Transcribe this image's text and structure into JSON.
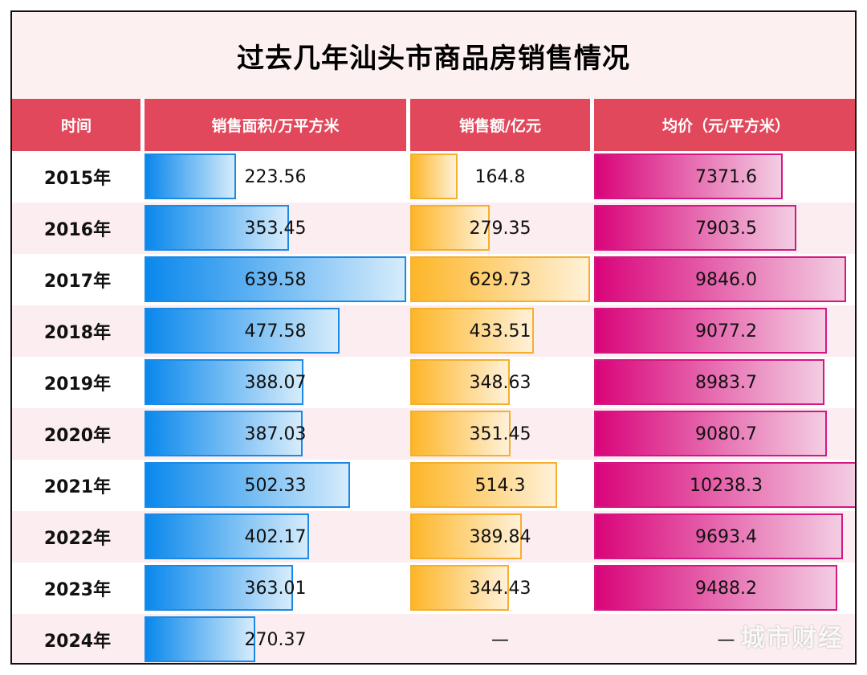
{
  "chart_data": {
    "type": "table",
    "title": "过去几年汕头市商品房销售情况",
    "headers": [
      "时间",
      "销售面积/万平方米",
      "销售额/亿元",
      "均价（元/平方米）"
    ],
    "rows": [
      {
        "year": "2015年",
        "area": 223.56,
        "area_label": "223.56",
        "sales": 164.8,
        "sales_label": "164.8",
        "price": 7371.6,
        "price_label": "7371.6"
      },
      {
        "year": "2016年",
        "area": 353.45,
        "area_label": "353.45",
        "sales": 279.35,
        "sales_label": "279.35",
        "price": 7903.5,
        "price_label": "7903.5"
      },
      {
        "year": "2017年",
        "area": 639.58,
        "area_label": "639.58",
        "sales": 629.73,
        "sales_label": "629.73",
        "price": 9846.0,
        "price_label": "9846.0"
      },
      {
        "year": "2018年",
        "area": 477.58,
        "area_label": "477.58",
        "sales": 433.51,
        "sales_label": "433.51",
        "price": 9077.2,
        "price_label": "9077.2"
      },
      {
        "year": "2019年",
        "area": 388.07,
        "area_label": "388.07",
        "sales": 348.63,
        "sales_label": "348.63",
        "price": 8983.7,
        "price_label": "8983.7"
      },
      {
        "year": "2020年",
        "area": 387.03,
        "area_label": "387.03",
        "sales": 351.45,
        "sales_label": "351.45",
        "price": 9080.7,
        "price_label": "9080.7"
      },
      {
        "year": "2021年",
        "area": 502.33,
        "area_label": "502.33",
        "sales": 514.3,
        "sales_label": "514.3",
        "price": 10238.3,
        "price_label": "10238.3"
      },
      {
        "year": "2022年",
        "area": 402.17,
        "area_label": "402.17",
        "sales": 389.84,
        "sales_label": "389.84",
        "price": 9693.4,
        "price_label": "9693.4"
      },
      {
        "year": "2023年",
        "area": 363.01,
        "area_label": "363.01",
        "sales": 344.43,
        "sales_label": "344.43",
        "price": 9488.2,
        "price_label": "9488.2"
      },
      {
        "year": "2024年",
        "area": 270.37,
        "area_label": "270.37",
        "sales": null,
        "sales_label": "—",
        "price": null,
        "price_label": "—"
      }
    ],
    "scale_max": {
      "area": 639.58,
      "sales": 629.73,
      "price": 10238.3
    }
  },
  "watermark": "城市财经",
  "colors": {
    "header_bg": "#e2485c",
    "title_bg": "#fdf0f0",
    "row_alt_bg": "#fceef0",
    "area_bar": "#0a88ec",
    "sales_bar": "#fdb629",
    "price_bar": "#d9047a"
  }
}
